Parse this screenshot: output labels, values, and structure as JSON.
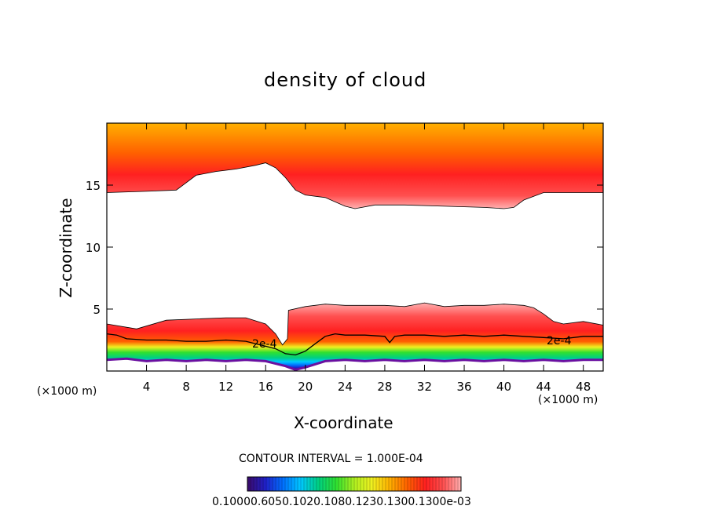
{
  "chart_data": {
    "type": "heatmap",
    "title": "density of cloud",
    "xlabel": "X-coordinate",
    "ylabel": "Z-coordinate",
    "x_unit": "(×1000 m)",
    "x_unit_left": "(×1000 m)",
    "xlim": [
      0,
      50
    ],
    "ylim": [
      0,
      20
    ],
    "x_ticks": [
      4,
      8,
      12,
      16,
      20,
      24,
      28,
      32,
      36,
      40,
      44,
      48
    ],
    "y_ticks": [
      5,
      10,
      15
    ],
    "contour_label": "2e-4",
    "contour_interval": "CONTOUR INTERVAL = 1.000E-04",
    "colorbar_labels": "0.10000.6050.1020.1080.1230.1300.1300e-03",
    "colormap": [
      "#3a0a68",
      "#2020c8",
      "#0070ff",
      "#00c8ff",
      "#00d080",
      "#30e030",
      "#b0f020",
      "#f0f020",
      "#ffb000",
      "#ff6000",
      "#ff2020",
      "#ff5050",
      "#ffb0b0"
    ],
    "upper_cloud_base": [
      [
        0,
        14.4
      ],
      [
        4,
        14.5
      ],
      [
        7,
        14.6
      ],
      [
        9,
        15.8
      ],
      [
        11,
        16.1
      ],
      [
        13,
        16.3
      ],
      [
        15,
        16.6
      ],
      [
        16,
        16.8
      ],
      [
        17,
        16.4
      ],
      [
        18,
        15.6
      ],
      [
        19,
        14.6
      ],
      [
        20,
        14.2
      ],
      [
        22,
        14.0
      ],
      [
        24,
        13.3
      ],
      [
        25,
        13.1
      ],
      [
        27,
        13.4
      ],
      [
        30,
        13.4
      ],
      [
        34,
        13.3
      ],
      [
        38,
        13.2
      ],
      [
        40,
        13.1
      ],
      [
        41,
        13.2
      ],
      [
        42,
        13.8
      ],
      [
        44,
        14.4
      ],
      [
        48,
        14.4
      ],
      [
        50,
        14.4
      ]
    ],
    "lower_cloud_top": [
      [
        0,
        3.8
      ],
      [
        3,
        3.4
      ],
      [
        6,
        4.1
      ],
      [
        9,
        4.2
      ],
      [
        12,
        4.3
      ],
      [
        14,
        4.3
      ],
      [
        16,
        3.8
      ],
      [
        17,
        3.0
      ],
      [
        17.7,
        2.1
      ],
      [
        18.2,
        2.6
      ],
      [
        18.3,
        4.9
      ],
      [
        20,
        5.2
      ],
      [
        22,
        5.4
      ],
      [
        24,
        5.3
      ],
      [
        26,
        5.3
      ],
      [
        28,
        5.3
      ],
      [
        30,
        5.2
      ],
      [
        32,
        5.5
      ],
      [
        34,
        5.2
      ],
      [
        36,
        5.3
      ],
      [
        38,
        5.3
      ],
      [
        40,
        5.4
      ],
      [
        42,
        5.3
      ],
      [
        43,
        5.1
      ],
      [
        44,
        4.6
      ],
      [
        45,
        4.0
      ],
      [
        46,
        3.8
      ],
      [
        48,
        4.0
      ],
      [
        50,
        3.7
      ]
    ],
    "contour_2e4": [
      [
        0,
        3.0
      ],
      [
        1,
        2.9
      ],
      [
        2,
        2.6
      ],
      [
        4,
        2.5
      ],
      [
        6,
        2.5
      ],
      [
        8,
        2.4
      ],
      [
        10,
        2.4
      ],
      [
        12,
        2.5
      ],
      [
        14,
        2.4
      ],
      [
        15,
        2.2
      ],
      [
        16,
        2.0
      ],
      [
        17,
        1.8
      ],
      [
        18,
        1.4
      ],
      [
        19,
        1.3
      ],
      [
        20,
        1.6
      ],
      [
        21,
        2.2
      ],
      [
        22,
        2.8
      ],
      [
        23,
        3.0
      ],
      [
        24,
        2.9
      ],
      [
        26,
        2.9
      ],
      [
        28,
        2.8
      ],
      [
        28.5,
        2.3
      ],
      [
        29,
        2.8
      ],
      [
        30,
        2.9
      ],
      [
        32,
        2.9
      ],
      [
        34,
        2.8
      ],
      [
        36,
        2.9
      ],
      [
        38,
        2.8
      ],
      [
        40,
        2.9
      ],
      [
        42,
        2.8
      ],
      [
        44,
        2.7
      ],
      [
        46,
        2.6
      ],
      [
        48,
        2.8
      ],
      [
        50,
        2.8
      ]
    ],
    "lower_cloud_base": [
      [
        0,
        0.9
      ],
      [
        2,
        1.0
      ],
      [
        4,
        0.8
      ],
      [
        6,
        0.9
      ],
      [
        8,
        0.8
      ],
      [
        10,
        0.9
      ],
      [
        12,
        0.8
      ],
      [
        14,
        0.9
      ],
      [
        16,
        0.8
      ],
      [
        18,
        0.4
      ],
      [
        19,
        0.1
      ],
      [
        20,
        0.3
      ],
      [
        22,
        0.8
      ],
      [
        24,
        0.9
      ],
      [
        26,
        0.8
      ],
      [
        28,
        0.9
      ],
      [
        30,
        0.8
      ],
      [
        32,
        0.9
      ],
      [
        34,
        0.8
      ],
      [
        36,
        0.9
      ],
      [
        38,
        0.8
      ],
      [
        40,
        0.9
      ],
      [
        42,
        0.8
      ],
      [
        44,
        0.9
      ],
      [
        46,
        0.8
      ],
      [
        48,
        0.9
      ],
      [
        50,
        0.9
      ]
    ]
  }
}
